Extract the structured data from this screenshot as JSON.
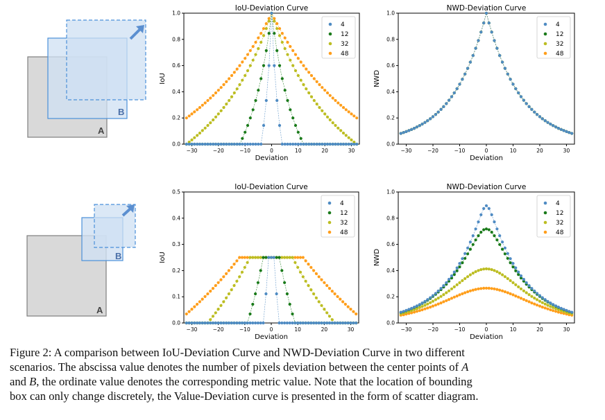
{
  "colors": {
    "c4": "#4f8bc3",
    "c12": "#1a7a1a",
    "c32": "#bcbd22",
    "c48": "#ff9e1b",
    "box_a_fill": "#d9d9d9",
    "box_a_stroke": "#7f7f7f",
    "box_b_fill": "#cfe0f3",
    "box_b_stroke": "#4a90d9",
    "arrow": "#5b8fd0"
  },
  "diagrams": [
    {
      "box_a": "A",
      "box_b": "B",
      "b_dashed_arrow_icon": "arrow-up-right-icon"
    },
    {
      "box_a": "A",
      "box_b": "B",
      "b_dashed_arrow_icon": "arrow-up-right-icon"
    }
  ],
  "chart_data": [
    {
      "type": "scatter",
      "title": "IoU-Deviation Curve",
      "xlabel": "Deviation",
      "ylabel": "IoU",
      "xlim": [
        -33,
        33
      ],
      "ylim": [
        0,
        1.0
      ],
      "xticks": [
        -30,
        -20,
        -10,
        0,
        10,
        20,
        30
      ],
      "yticks": [
        0.0,
        0.2,
        0.4,
        0.6,
        0.8,
        1.0
      ],
      "legend_position": "top-right",
      "x_range": [
        -32,
        32
      ],
      "series": [
        {
          "name": "4",
          "color_key": "c4",
          "formula": "iou_same",
          "size": 4
        },
        {
          "name": "12",
          "color_key": "c12",
          "formula": "iou_same",
          "size": 12
        },
        {
          "name": "32",
          "color_key": "c32",
          "formula": "iou_same",
          "size": 32
        },
        {
          "name": "48",
          "color_key": "c48",
          "formula": "iou_same",
          "size": 48
        }
      ]
    },
    {
      "type": "scatter",
      "title": "NWD-Deviation Curve",
      "xlabel": "Deviation",
      "ylabel": "NWD",
      "xlim": [
        -33,
        33
      ],
      "ylim": [
        0,
        1.0
      ],
      "xticks": [
        -30,
        -20,
        -10,
        0,
        10,
        20,
        30
      ],
      "yticks": [
        0.0,
        0.2,
        0.4,
        0.6,
        0.8,
        1.0
      ],
      "legend_position": "top-right",
      "x_range": [
        -32,
        32
      ],
      "series": [
        {
          "name": "4",
          "color_key": "c4",
          "formula": "nwd_same",
          "size": 4
        },
        {
          "name": "12",
          "color_key": "c12",
          "formula": "nwd_same",
          "size": 12
        },
        {
          "name": "32",
          "color_key": "c32",
          "formula": "nwd_same",
          "size": 32
        },
        {
          "name": "48",
          "color_key": "c48",
          "formula": "nwd_same",
          "size": 48
        }
      ]
    },
    {
      "type": "scatter",
      "title": "IoU-Deviation Curve",
      "xlabel": "Deviation",
      "ylabel": "IoU",
      "xlim": [
        -33,
        33
      ],
      "ylim": [
        0,
        0.5
      ],
      "xticks": [
        -30,
        -20,
        -10,
        0,
        10,
        20,
        30
      ],
      "yticks": [
        0.0,
        0.1,
        0.2,
        0.3,
        0.4,
        0.5
      ],
      "legend_position": "top-right",
      "x_range": [
        -32,
        32
      ],
      "series": [
        {
          "name": "4",
          "color_key": "c4",
          "formula": "iou_half",
          "size": 4
        },
        {
          "name": "12",
          "color_key": "c12",
          "formula": "iou_half",
          "size": 12
        },
        {
          "name": "32",
          "color_key": "c32",
          "formula": "iou_half",
          "size": 32
        },
        {
          "name": "48",
          "color_key": "c48",
          "formula": "iou_half",
          "size": 48
        }
      ]
    },
    {
      "type": "scatter",
      "title": "NWD-Deviation Curve",
      "xlabel": "Deviation",
      "ylabel": "NWD",
      "xlim": [
        -33,
        33
      ],
      "ylim": [
        0,
        1.0
      ],
      "xticks": [
        -30,
        -20,
        -10,
        0,
        10,
        20,
        30
      ],
      "yticks": [
        0.0,
        0.2,
        0.4,
        0.6,
        0.8,
        1.0
      ],
      "legend_position": "top-right",
      "x_range": [
        -32,
        32
      ],
      "series": [
        {
          "name": "4",
          "color_key": "c4",
          "formula": "nwd_half",
          "size": 4
        },
        {
          "name": "12",
          "color_key": "c12",
          "formula": "nwd_half",
          "size": 12
        },
        {
          "name": "32",
          "color_key": "c32",
          "formula": "nwd_half",
          "size": 32
        },
        {
          "name": "48",
          "color_key": "c48",
          "formula": "nwd_half",
          "size": 48
        }
      ]
    }
  ],
  "caption": {
    "line1": "Figure 2: A comparison between IoU-Deviation Curve and NWD-Deviation Curve in two different",
    "line2": "scenarios. The abscissa value denotes the number of pixels deviation between the center points of ",
    "line2_a": "A",
    "line3_pre": "and ",
    "line3_b": "B",
    "line3_post": ", the ordinate value denotes the corresponding metric value. Note that the location of bounding",
    "line4": "box can only change discretely, the Value-Deviation curve is presented in the form of scatter diagram."
  }
}
